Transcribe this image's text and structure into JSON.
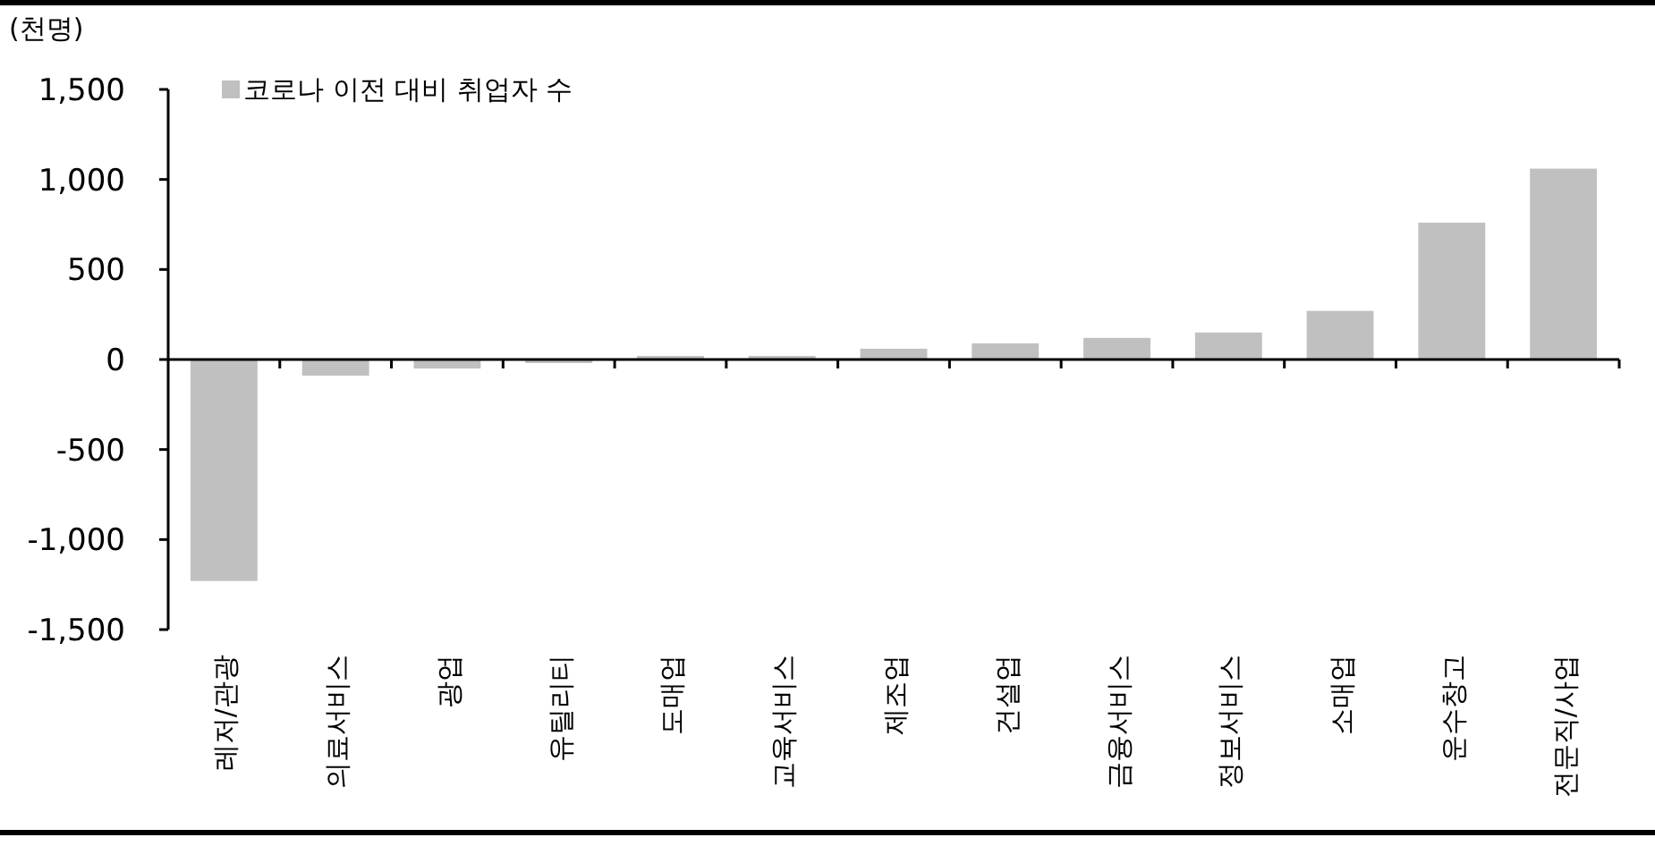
{
  "chart_data": {
    "type": "bar",
    "ylabel": "(천명)",
    "categories": [
      "레저/관광",
      "의료서비스",
      "광업",
      "유틸리티",
      "도매업",
      "교육서비스",
      "제조업",
      "건설업",
      "금융서비스",
      "정보서비스",
      "소매업",
      "운수창고",
      "전문직/사업"
    ],
    "series": [
      {
        "name": "코로나 이전 대비 취업자 수",
        "color": "#c0c0c0",
        "values": [
          -1230,
          -90,
          -50,
          -20,
          20,
          20,
          60,
          90,
          120,
          150,
          270,
          760,
          1060
        ]
      }
    ],
    "ylim": [
      -1500,
      1500
    ],
    "yticks": [
      {
        "value": -1500,
        "label": "-1,500"
      },
      {
        "value": -1000,
        "label": "-1,000"
      },
      -500,
      0,
      500,
      {
        "value": 1000,
        "label": "1,000"
      },
      {
        "value": 1500,
        "label": "1,500"
      }
    ],
    "legend": "top left"
  }
}
